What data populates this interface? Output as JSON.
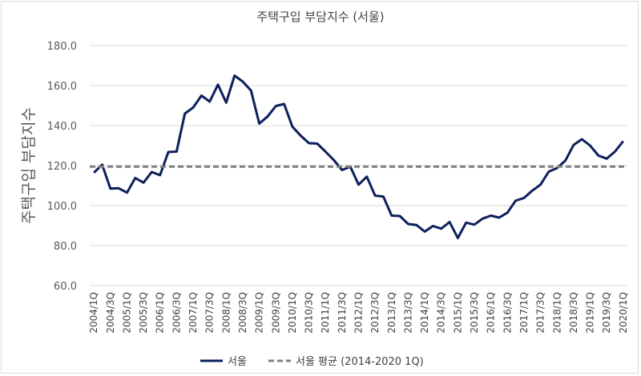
{
  "chart_data": {
    "type": "line",
    "title": "주택구입 부담지수 (서울)",
    "xlabel": "",
    "ylabel": "주택구입 부담지수",
    "ylim": [
      60,
      180
    ],
    "yticks": [
      "60.0",
      "80.0",
      "100.0",
      "120.0",
      "140.0",
      "160.0",
      "180.0"
    ],
    "grid": true,
    "legend_position": "bottom",
    "categories": [
      "2004/1Q",
      "2004/2Q",
      "2004/3Q",
      "2004/4Q",
      "2005/1Q",
      "2005/2Q",
      "2005/3Q",
      "2005/4Q",
      "2006/1Q",
      "2006/2Q",
      "2006/3Q",
      "2006/4Q",
      "2007/1Q",
      "2007/2Q",
      "2007/3Q",
      "2007/4Q",
      "2008/1Q",
      "2008/2Q",
      "2008/3Q",
      "2008/4Q",
      "2009/1Q",
      "2009/2Q",
      "2009/3Q",
      "2009/4Q",
      "2010/1Q",
      "2010/2Q",
      "2010/3Q",
      "2010/4Q",
      "2011/1Q",
      "2011/2Q",
      "2011/3Q",
      "2011/4Q",
      "2012/1Q",
      "2012/2Q",
      "2012/3Q",
      "2012/4Q",
      "2013/1Q",
      "2013/2Q",
      "2013/3Q",
      "2013/4Q",
      "2014/1Q",
      "2014/2Q",
      "2014/3Q",
      "2014/4Q",
      "2015/1Q",
      "2015/2Q",
      "2015/3Q",
      "2015/4Q",
      "2016/1Q",
      "2016/2Q",
      "2016/3Q",
      "2016/4Q",
      "2017/1Q",
      "2017/2Q",
      "2017/3Q",
      "2017/4Q",
      "2018/1Q",
      "2018/2Q",
      "2018/3Q",
      "2018/4Q",
      "2019/1Q",
      "2019/2Q",
      "2019/3Q",
      "2019/4Q",
      "2020/1Q"
    ],
    "series": [
      {
        "name": "서울",
        "color": "#0d1f5c",
        "style": "solid",
        "values": [
          116.5,
          120.5,
          108.5,
          108.7,
          106.5,
          113.8,
          111.5,
          116.8,
          115.2,
          126.8,
          127.0,
          146.0,
          149.0,
          155.0,
          152.0,
          160.5,
          151.5,
          165.0,
          162.0,
          157.5,
          141.0,
          144.5,
          149.8,
          150.8,
          139.5,
          135.0,
          131.2,
          131.0,
          127.0,
          122.8,
          117.8,
          119.5,
          110.5,
          114.5,
          105.0,
          104.5,
          95.0,
          94.8,
          90.8,
          90.3,
          87.0,
          89.8,
          88.5,
          91.8,
          83.8,
          91.5,
          90.5,
          93.5,
          95.0,
          94.0,
          96.5,
          102.5,
          103.8,
          107.5,
          110.5,
          117.0,
          118.8,
          122.5,
          130.3,
          133.2,
          130.0,
          125.0,
          123.5,
          127.0,
          132.2
        ]
      },
      {
        "name": "서울 평균 (2014-2020 1Q)",
        "color": "#7f7f7f",
        "style": "dashed",
        "constant": 119.5
      }
    ]
  }
}
